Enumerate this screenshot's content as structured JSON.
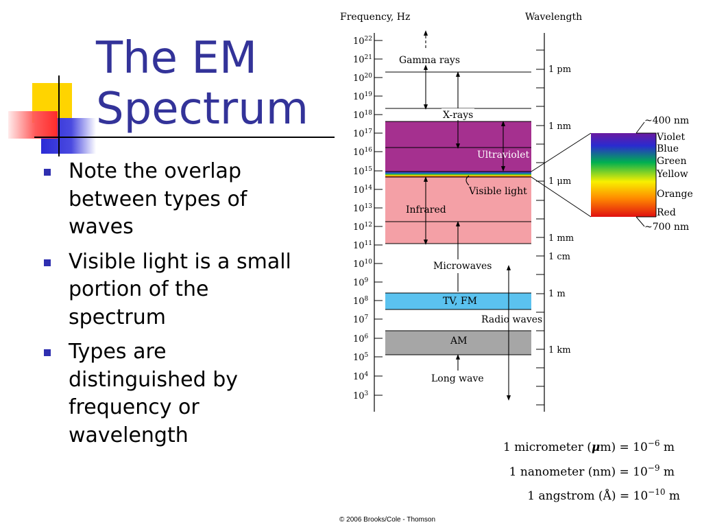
{
  "slide": {
    "title_lines": [
      "The EM",
      "Spectrum"
    ],
    "bullets": [
      "Note the overlap between types of waves",
      "Visible light is a small portion of the spectrum",
      "Types are distinguished by frequency or wavelength"
    ],
    "footer": "© 2006 Brooks/Cole - Thomson",
    "colors": {
      "title": "#333399",
      "bullet": "#2f2fb0",
      "deco_yellow": "#ffd400",
      "deco_blue": "#2b2bd6",
      "deco_red": "#ff3b3b"
    }
  },
  "diagram": {
    "freq_header": "Frequency, Hz",
    "wave_header": "Wavelength",
    "freq_ticks": [
      {
        "base": "10",
        "exp": "22"
      },
      {
        "base": "10",
        "exp": "21"
      },
      {
        "base": "10",
        "exp": "20"
      },
      {
        "base": "10",
        "exp": "19"
      },
      {
        "base": "10",
        "exp": "18"
      },
      {
        "base": "10",
        "exp": "17"
      },
      {
        "base": "10",
        "exp": "16"
      },
      {
        "base": "10",
        "exp": "15"
      },
      {
        "base": "10",
        "exp": "14"
      },
      {
        "base": "10",
        "exp": "13"
      },
      {
        "base": "10",
        "exp": "12"
      },
      {
        "base": "10",
        "exp": "11"
      },
      {
        "base": "10",
        "exp": "10"
      },
      {
        "base": "10",
        "exp": "9"
      },
      {
        "base": "10",
        "exp": "8"
      },
      {
        "base": "10",
        "exp": "7"
      },
      {
        "base": "10",
        "exp": "6"
      },
      {
        "base": "10",
        "exp": "5"
      },
      {
        "base": "10",
        "exp": "4"
      },
      {
        "base": "10",
        "exp": "3"
      }
    ],
    "wavelength_labels": [
      "1 pm",
      "1 nm",
      "1 μm",
      "1 mm",
      "1 cm",
      "1 m",
      "1 km"
    ],
    "regions": {
      "gamma": "Gamma rays",
      "xrays": "X-rays",
      "uv": "Ultraviolet",
      "visible": "Visible light",
      "ir": "Infrared",
      "microwaves": "Microwaves",
      "tvfm": "TV, FM",
      "radio": "Radio waves",
      "am": "AM",
      "longwave": "Long wave"
    },
    "region_colors": {
      "uv": "#a5308f",
      "ir": "#f4a0a6",
      "tvfm": "#5bc2ef",
      "am": "#a6a6a6"
    },
    "visible_top": "~400 nm",
    "visible_bottom": "~700 nm",
    "colors_list": [
      "Violet",
      "Blue",
      "Green",
      "Yellow",
      "Orange",
      "Red"
    ],
    "units": [
      {
        "prefix": "1 micrometer (",
        "sym": "μ",
        "mid": "m) = 10",
        "exp": "−6",
        "suffix": " m"
      },
      {
        "prefix": "1 nanometer (nm) = 10",
        "sym": "",
        "mid": "",
        "exp": "−9",
        "suffix": " m"
      },
      {
        "prefix": "1 angstrom (Å) = 10",
        "sym": "",
        "mid": "",
        "exp": "−10",
        "suffix": " m"
      }
    ]
  }
}
